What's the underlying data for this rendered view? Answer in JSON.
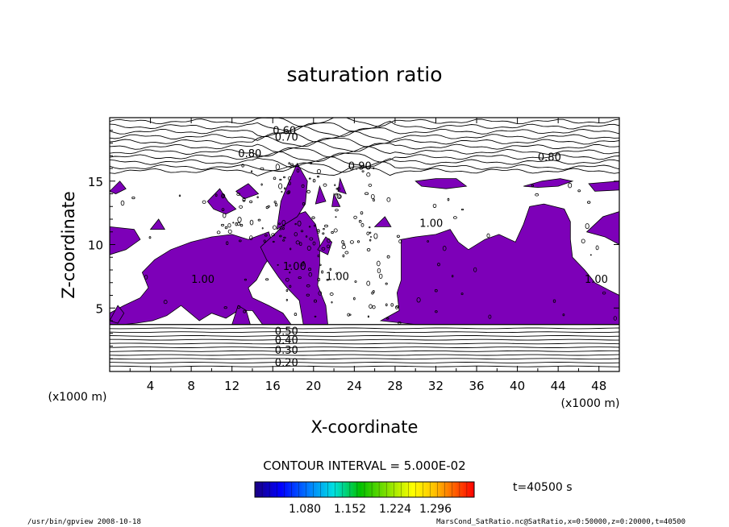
{
  "chart_data": {
    "type": "heatmap",
    "title": "saturation ratio",
    "xlabel": "X-coordinate",
    "ylabel": "Z-coordinate",
    "x_unit": "(x1000 m)",
    "y_unit": "(x1000 m)",
    "xlim": [
      0,
      50
    ],
    "ylim": [
      0,
      20
    ],
    "x_ticks": [
      "4",
      "8",
      "12",
      "16",
      "20",
      "24",
      "28",
      "32",
      "36",
      "40",
      "44",
      "48"
    ],
    "y_ticks": [
      "5",
      "10",
      "15"
    ],
    "contour_interval": "CONTOUR INTERVAL = 5.000E-02",
    "time": "t=40500 s",
    "contour_labels": [
      "0.60",
      "0.70",
      "0.80",
      "0.80",
      "0.90",
      "1.00",
      "1.00",
      "1.00",
      "1.00",
      "1.00",
      "0.50",
      "0.40",
      "0.30",
      "0.20"
    ],
    "colorbar": {
      "ticks": [
        "1.080",
        "1.152",
        "1.224",
        "1.296"
      ],
      "colors": [
        "#1a0080",
        "#0000ff",
        "#0080ff",
        "#00e0e0",
        "#00c000",
        "#80e000",
        "#ffff00",
        "#ffc000",
        "#ff6000",
        "#ff0000"
      ]
    },
    "fill_color": "#7d00b8"
  },
  "footer": {
    "left": "/usr/bin/gpview   2008-10-18",
    "right": "MarsCond_SatRatio.nc@SatRatio,x=0:50000,z=0:20000,t=40500"
  }
}
